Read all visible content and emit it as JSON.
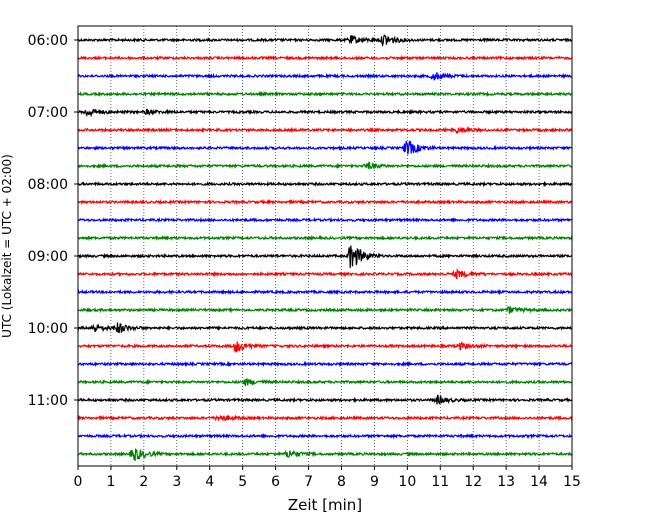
{
  "chart_data": {
    "type": "line",
    "title": "",
    "xlabel": "Zeit  [min]",
    "ylabel": "UTC (Lokalzeit = UTC + 02:00)",
    "xlim": [
      0,
      15
    ],
    "xticks": [
      0,
      1,
      2,
      3,
      4,
      5,
      6,
      7,
      8,
      9,
      10,
      11,
      12,
      13,
      14,
      15
    ],
    "y_tick_labels": [
      "06:00",
      "07:00",
      "08:00",
      "09:00",
      "10:00",
      "11:00"
    ],
    "grid": "vertical dotted lines at each minute",
    "trace_interval_min": 15,
    "trace_colors": [
      "#000000",
      "#ff0000",
      "#0000ff",
      "#008000"
    ],
    "traces": [
      {
        "start": "06:00",
        "color": "#000000",
        "events": [
          {
            "t": 8.3,
            "amp": 4
          },
          {
            "t": 9.3,
            "amp": 6
          }
        ]
      },
      {
        "start": "06:15",
        "color": "#ff0000",
        "events": []
      },
      {
        "start": "06:30",
        "color": "#0000ff",
        "events": [
          {
            "t": 10.8,
            "amp": 4
          }
        ]
      },
      {
        "start": "06:45",
        "color": "#008000",
        "events": []
      },
      {
        "start": "07:00",
        "color": "#000000",
        "events": [
          {
            "t": 0.3,
            "amp": 4
          },
          {
            "t": 2.1,
            "amp": 2
          }
        ]
      },
      {
        "start": "07:15",
        "color": "#ff0000",
        "events": [
          {
            "t": 11.5,
            "amp": 3
          }
        ]
      },
      {
        "start": "07:30",
        "color": "#0000ff",
        "events": [
          {
            "t": 10.0,
            "amp": 8
          }
        ]
      },
      {
        "start": "07:45",
        "color": "#008000",
        "events": [
          {
            "t": 8.8,
            "amp": 3
          }
        ]
      },
      {
        "start": "08:00",
        "color": "#000000",
        "events": []
      },
      {
        "start": "08:15",
        "color": "#ff0000",
        "events": []
      },
      {
        "start": "08:30",
        "color": "#0000ff",
        "events": []
      },
      {
        "start": "08:45",
        "color": "#008000",
        "events": []
      },
      {
        "start": "09:00",
        "color": "#000000",
        "events": [
          {
            "t": 8.3,
            "amp": 14
          }
        ]
      },
      {
        "start": "09:15",
        "color": "#ff0000",
        "events": [
          {
            "t": 11.5,
            "amp": 4
          }
        ]
      },
      {
        "start": "09:30",
        "color": "#0000ff",
        "events": []
      },
      {
        "start": "09:45",
        "color": "#008000",
        "events": [
          {
            "t": 13.1,
            "amp": 3
          }
        ]
      },
      {
        "start": "10:00",
        "color": "#000000",
        "events": [
          {
            "t": 0.5,
            "amp": 4
          },
          {
            "t": 1.2,
            "amp": 5
          }
        ]
      },
      {
        "start": "10:15",
        "color": "#ff0000",
        "events": [
          {
            "t": 4.8,
            "amp": 6
          },
          {
            "t": 11.6,
            "amp": 3
          }
        ]
      },
      {
        "start": "10:30",
        "color": "#0000ff",
        "events": []
      },
      {
        "start": "10:45",
        "color": "#008000",
        "events": [
          {
            "t": 5.1,
            "amp": 3
          }
        ]
      },
      {
        "start": "11:00",
        "color": "#000000",
        "events": [
          {
            "t": 10.9,
            "amp": 4
          }
        ]
      },
      {
        "start": "11:15",
        "color": "#ff0000",
        "events": [
          {
            "t": 4.3,
            "amp": 3
          }
        ]
      },
      {
        "start": "11:30",
        "color": "#0000ff",
        "events": []
      },
      {
        "start": "11:45",
        "color": "#008000",
        "events": [
          {
            "t": 1.7,
            "amp": 7
          },
          {
            "t": 6.4,
            "amp": 4
          }
        ]
      }
    ]
  }
}
